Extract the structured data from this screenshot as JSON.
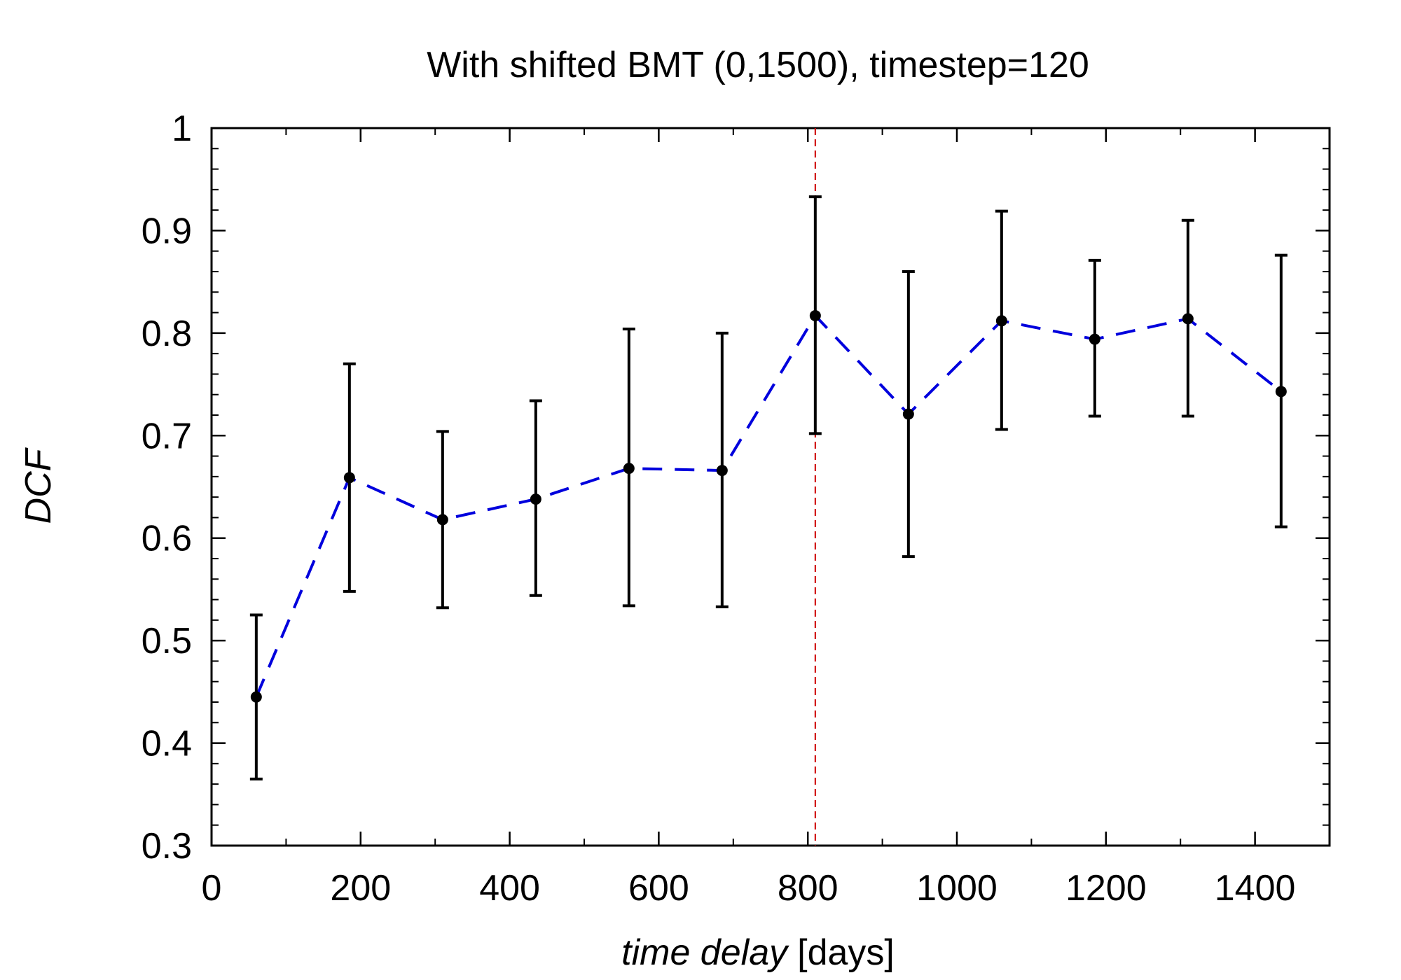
{
  "chart_data": {
    "type": "scatter",
    "title": "With shifted BMT (0,1500), timestep=120",
    "xlabel_italic": "time delay",
    "xlabel_unit": "[days]",
    "ylabel": "DCF",
    "xlim": [
      0,
      1500
    ],
    "ylim": [
      0.3,
      1.0
    ],
    "x_ticks": [
      0,
      200,
      400,
      600,
      800,
      1000,
      1200,
      1400
    ],
    "x_tick_labels": [
      "0",
      "200",
      "400",
      "600",
      "800",
      "1000",
      "1200",
      "1400"
    ],
    "y_ticks": [
      0.3,
      0.4,
      0.5,
      0.6,
      0.7,
      0.8,
      0.9,
      1.0
    ],
    "y_tick_labels": [
      "0.3",
      "0.4",
      "0.5",
      "0.6",
      "0.7",
      "0.8",
      "0.9",
      "1"
    ],
    "x_minor_step": 100,
    "y_minor_step": 0.02,
    "grid": false,
    "series": [
      {
        "name": "DCF",
        "x": [
          60,
          185,
          310,
          435,
          560,
          685,
          810,
          935,
          1060,
          1185,
          1310,
          1435
        ],
        "y": [
          0.445,
          0.659,
          0.618,
          0.638,
          0.668,
          0.666,
          0.817,
          0.721,
          0.812,
          0.794,
          0.814,
          0.743
        ],
        "y_lower": [
          0.365,
          0.548,
          0.532,
          0.544,
          0.534,
          0.533,
          0.702,
          0.582,
          0.706,
          0.719,
          0.719,
          0.611
        ],
        "y_upper": [
          0.525,
          0.77,
          0.704,
          0.734,
          0.804,
          0.8,
          0.933,
          0.86,
          0.919,
          0.871,
          0.91,
          0.876
        ],
        "point_color": "#000000",
        "line_color": "#0000dd",
        "line_style": "dashed"
      }
    ],
    "vertical_line": {
      "x": 810,
      "color": "#cc0000",
      "style": "dashed"
    }
  }
}
